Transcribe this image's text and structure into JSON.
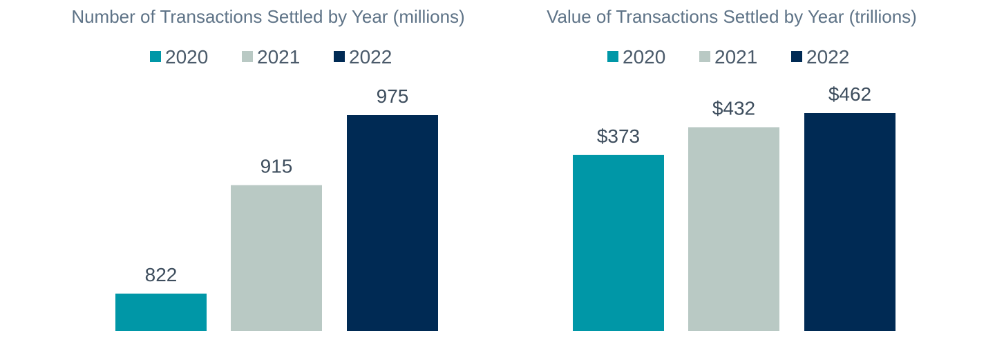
{
  "colors": {
    "2020": "#0097a7",
    "2021": "#b9c9c4",
    "2022": "#002a54"
  },
  "chart_data": [
    {
      "type": "bar",
      "title": "Number of Transactions Settled by Year (millions)",
      "categories": [
        "2020",
        "2021",
        "2022"
      ],
      "values": [
        822,
        915,
        975
      ],
      "value_labels": [
        "822",
        "915",
        "975"
      ],
      "legend": [
        "2020",
        "2021",
        "2022"
      ],
      "legend_position": "top",
      "grid": false,
      "xlabel": "",
      "ylabel": ""
    },
    {
      "type": "bar",
      "title": "Value of Transactions Settled by Year (trillions)",
      "categories": [
        "2020",
        "2021",
        "2022"
      ],
      "values": [
        373,
        432,
        462
      ],
      "value_labels": [
        "$373",
        "$432",
        "$462"
      ],
      "legend": [
        "2020",
        "2021",
        "2022"
      ],
      "legend_position": "top",
      "grid": false,
      "xlabel": "",
      "ylabel": ""
    }
  ]
}
